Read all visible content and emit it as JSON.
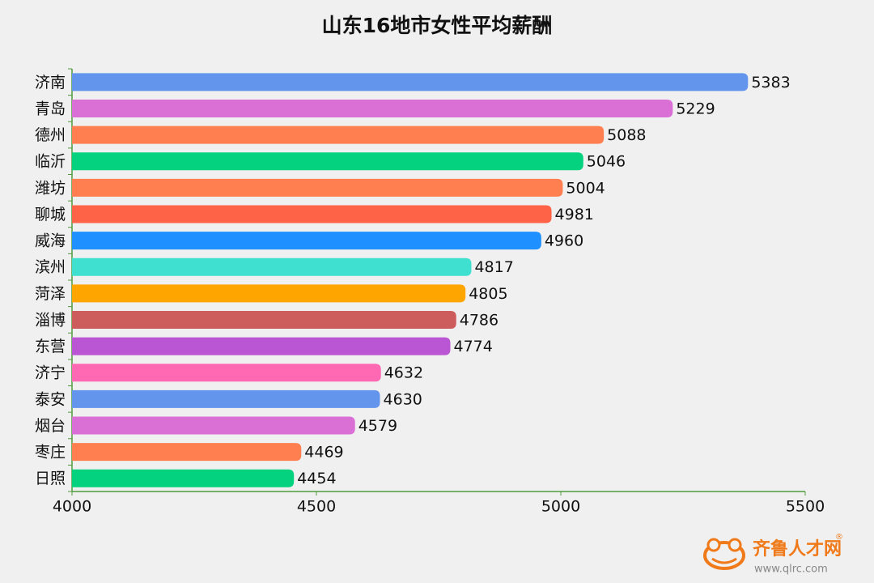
{
  "chart_data": {
    "type": "bar",
    "orientation": "horizontal",
    "title": "山东16地市女性平均薪酬",
    "categories": [
      "济南",
      "青岛",
      "德州",
      "临沂",
      "潍坊",
      "聊城",
      "威海",
      "滨州",
      "菏泽",
      "淄博",
      "东营",
      "济宁",
      "泰安",
      "烟台",
      "枣庄",
      "日照"
    ],
    "values": [
      5383,
      5229,
      5088,
      5046,
      5004,
      4981,
      4960,
      4817,
      4805,
      4786,
      4774,
      4632,
      4630,
      4579,
      4469,
      4454
    ],
    "colors": [
      "#6495ed",
      "#da70d6",
      "#ff7f50",
      "#05d27e",
      "#ff7f50",
      "#ff6347",
      "#1e90ff",
      "#40e0d0",
      "#ffa500",
      "#cd5c5c",
      "#ba55d3",
      "#ff69b4",
      "#6495ed",
      "#da70d6",
      "#ff7f50",
      "#05d27e"
    ],
    "xlim": [
      4000,
      5500
    ],
    "xticks": [
      4000,
      4500,
      5000,
      5500
    ],
    "grid": false
  },
  "watermark": {
    "name": "齐鲁人才网",
    "registered": "®",
    "url": "www.qlrc.com"
  }
}
